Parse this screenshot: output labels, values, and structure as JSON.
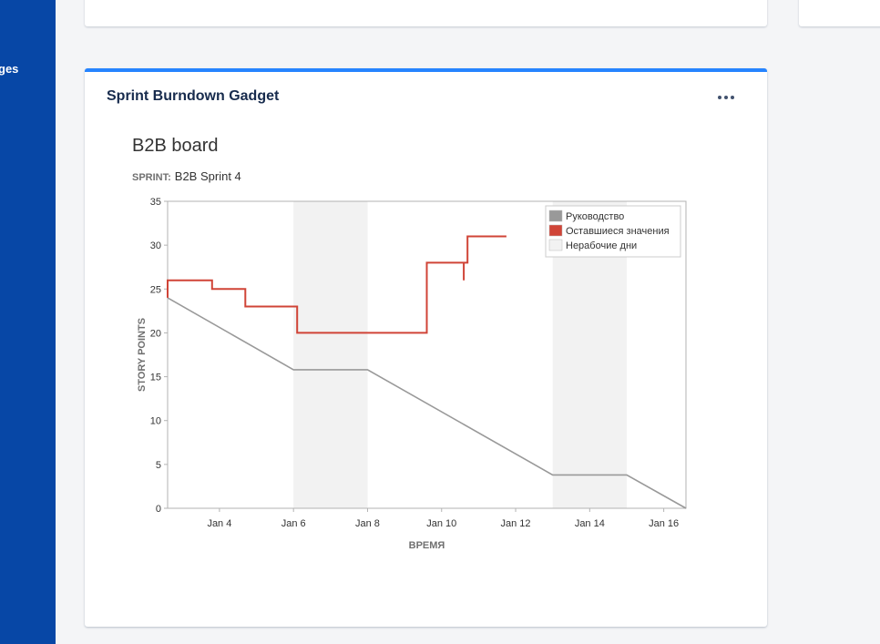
{
  "sidebar": {
    "label": "ges",
    "color": "#0747a6"
  },
  "gadget": {
    "title": "Sprint Burndown Gadget",
    "more_icon": "more-horizontal-icon",
    "board": "B2B board",
    "sprint_label": "SPRINT:",
    "sprint_name": "B2B Sprint 4",
    "accent": "#2684ff"
  },
  "chart_data": {
    "type": "line",
    "xlabel": "ВРЕМЯ",
    "ylabel": "STORY POINTS",
    "xlim": [
      "Jan 2.6",
      "Jan 16.6"
    ],
    "ylim": [
      0,
      35
    ],
    "yticks": [
      0,
      5,
      10,
      15,
      20,
      25,
      30,
      35
    ],
    "xticks": [
      {
        "x": 4,
        "label": "Jan 4"
      },
      {
        "x": 6,
        "label": "Jan 6"
      },
      {
        "x": 8,
        "label": "Jan 8"
      },
      {
        "x": 10,
        "label": "Jan 10"
      },
      {
        "x": 12,
        "label": "Jan 12"
      },
      {
        "x": 14,
        "label": "Jan 14"
      },
      {
        "x": 16,
        "label": "Jan 16"
      }
    ],
    "non_working_days": [
      [
        6,
        8
      ],
      [
        13,
        15
      ]
    ],
    "legend_position": "top-right",
    "series": [
      {
        "name": "Руководство",
        "color": "#999999",
        "points": [
          [
            2.6,
            24
          ],
          [
            6,
            15.8
          ],
          [
            8,
            15.8
          ],
          [
            13,
            3.8
          ],
          [
            15,
            3.8
          ],
          [
            16.6,
            0
          ]
        ]
      },
      {
        "name": "Оставшиеся значения",
        "color": "#d04437",
        "steps": [
          [
            2.6,
            24
          ],
          [
            2.6,
            26
          ],
          [
            3.8,
            26
          ],
          [
            3.8,
            25
          ],
          [
            4.7,
            25
          ],
          [
            4.7,
            23
          ],
          [
            6.1,
            23
          ],
          [
            6.1,
            20
          ],
          [
            9.6,
            20
          ],
          [
            9.6,
            28
          ],
          [
            10.6,
            28
          ],
          [
            10.6,
            26
          ],
          [
            10.6,
            28
          ],
          [
            10.7,
            28
          ],
          [
            10.7,
            31
          ],
          [
            11.75,
            31
          ]
        ]
      },
      {
        "name": "Нерабочие дни",
        "color": "#f2f2f2"
      }
    ]
  }
}
